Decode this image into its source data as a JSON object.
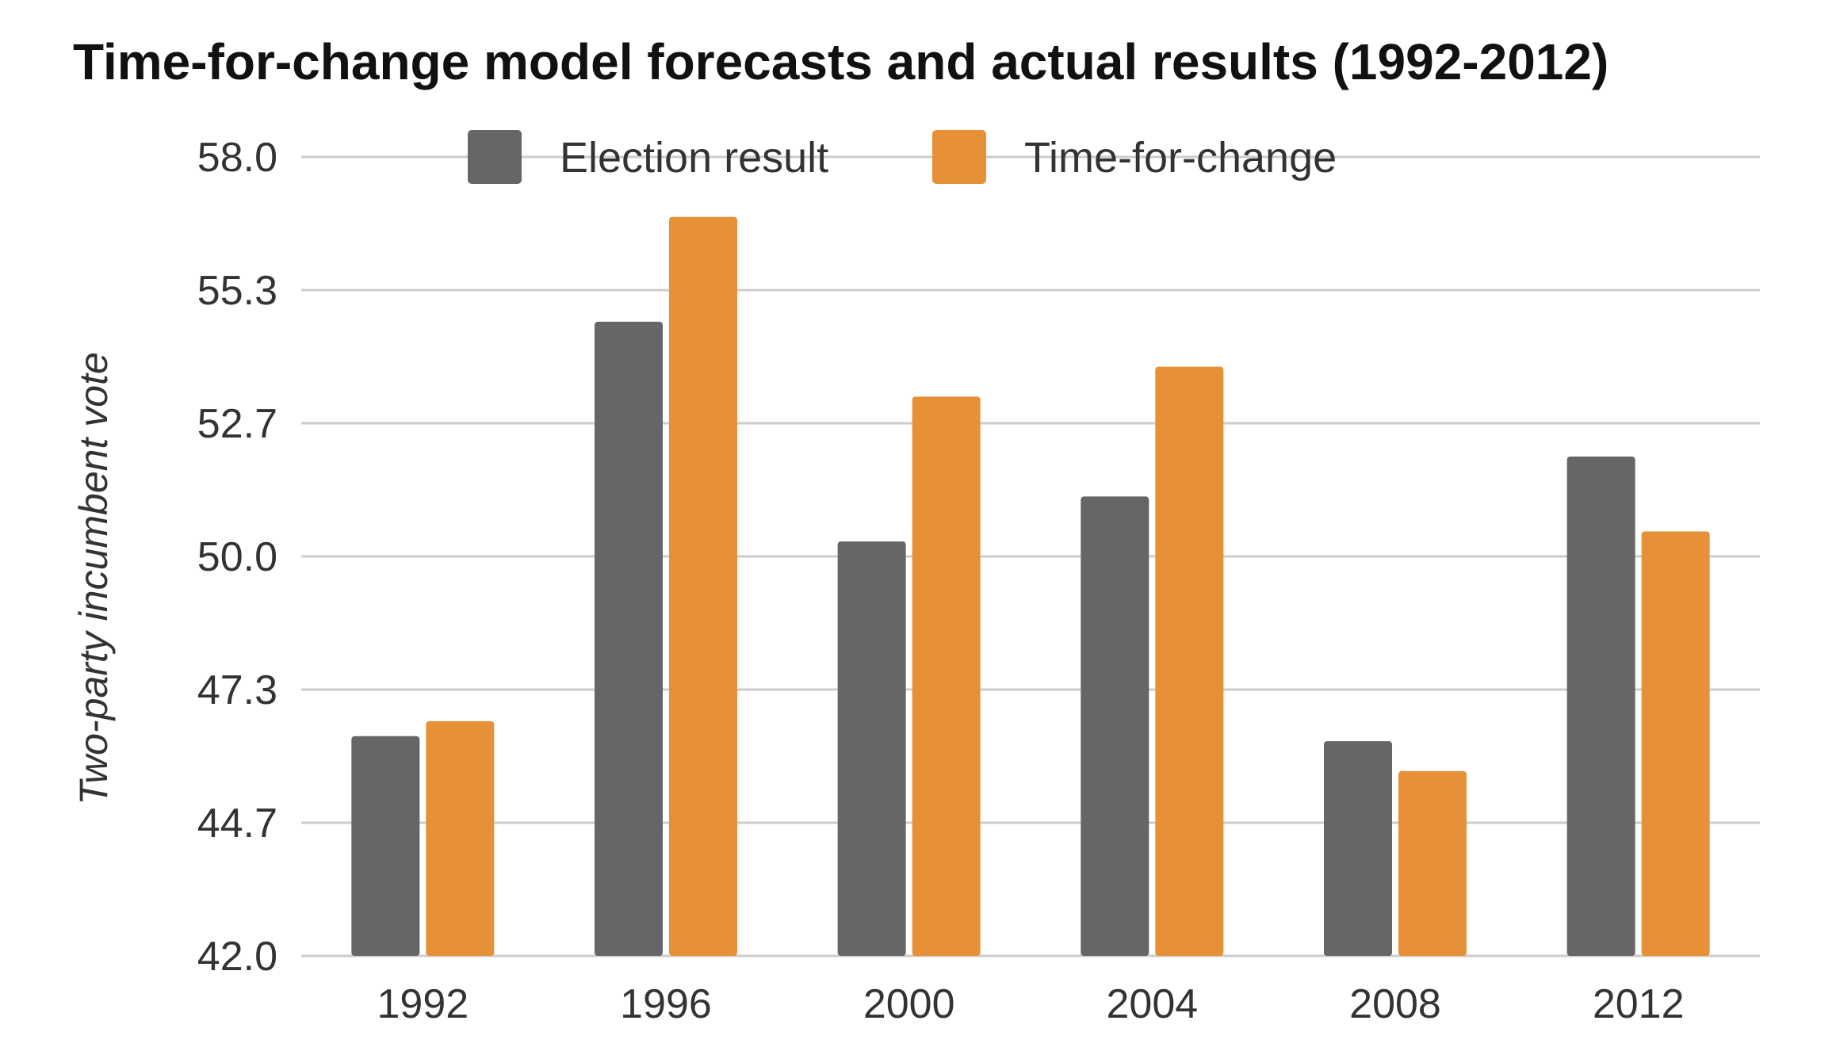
{
  "chart_data": {
    "type": "bar",
    "title": "Time-for-change model forecasts and actual results (1992-2012)",
    "xlabel": "",
    "ylabel": "Two-party incumbent vote",
    "categories": [
      "1992",
      "1996",
      "2000",
      "2004",
      "2008",
      "2012"
    ],
    "ylim": [
      42.0,
      58.0
    ],
    "yticks": [
      "58.0",
      "55.3",
      "52.7",
      "50.0",
      "47.3",
      "44.7",
      "42.0"
    ],
    "ytick_values": [
      58.0,
      55.333,
      52.667,
      50.0,
      47.333,
      44.667,
      42.0
    ],
    "grid": true,
    "legend_position": "top",
    "series": [
      {
        "name": "Election result",
        "color": "#666666",
        "values": [
          46.4,
          54.7,
          50.3,
          51.2,
          46.3,
          52.0
        ]
      },
      {
        "name": "Time-for-change",
        "color": "#e69138",
        "values": [
          46.7,
          56.8,
          53.2,
          53.8,
          45.7,
          50.5
        ]
      }
    ]
  }
}
